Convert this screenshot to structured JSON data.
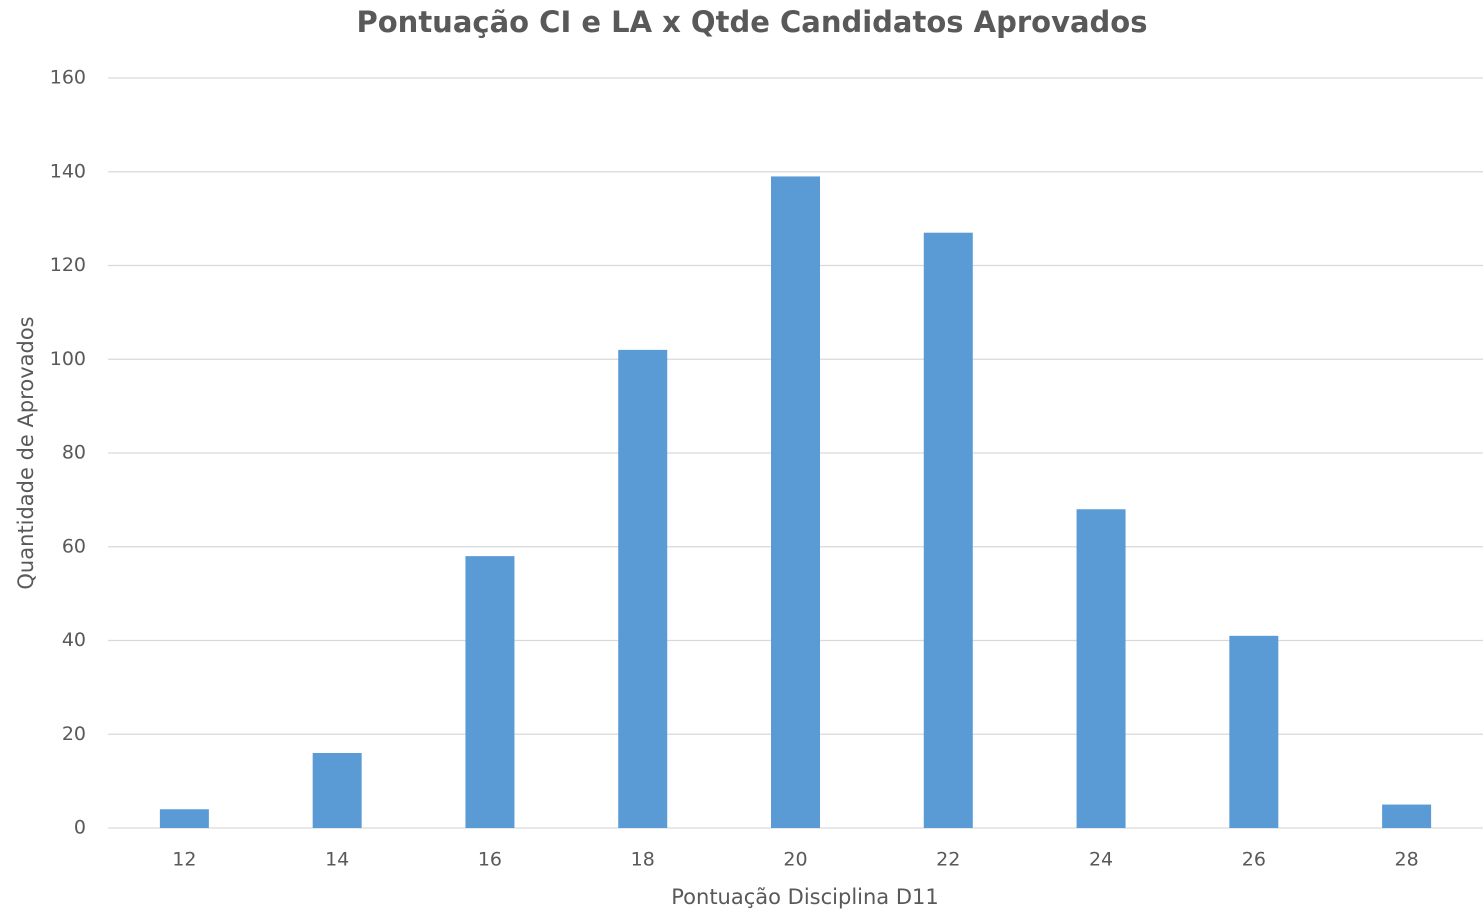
{
  "chart_data": {
    "type": "bar",
    "title": "Pontuação CI e LA x Qtde Candidatos Aprovados",
    "x_label": "Pontuação Disciplina D11",
    "y_label": "Quantidade de Aprovados",
    "categories": [
      "12",
      "14",
      "16",
      "18",
      "20",
      "22",
      "24",
      "26",
      "28"
    ],
    "values": [
      4,
      16,
      58,
      102,
      139,
      127,
      68,
      41,
      5
    ],
    "color": "#5b9bd5",
    "ylim": [
      0,
      160
    ],
    "yticks": [
      0,
      20,
      40,
      60,
      80,
      100,
      120,
      140,
      160
    ],
    "grid": true
  }
}
